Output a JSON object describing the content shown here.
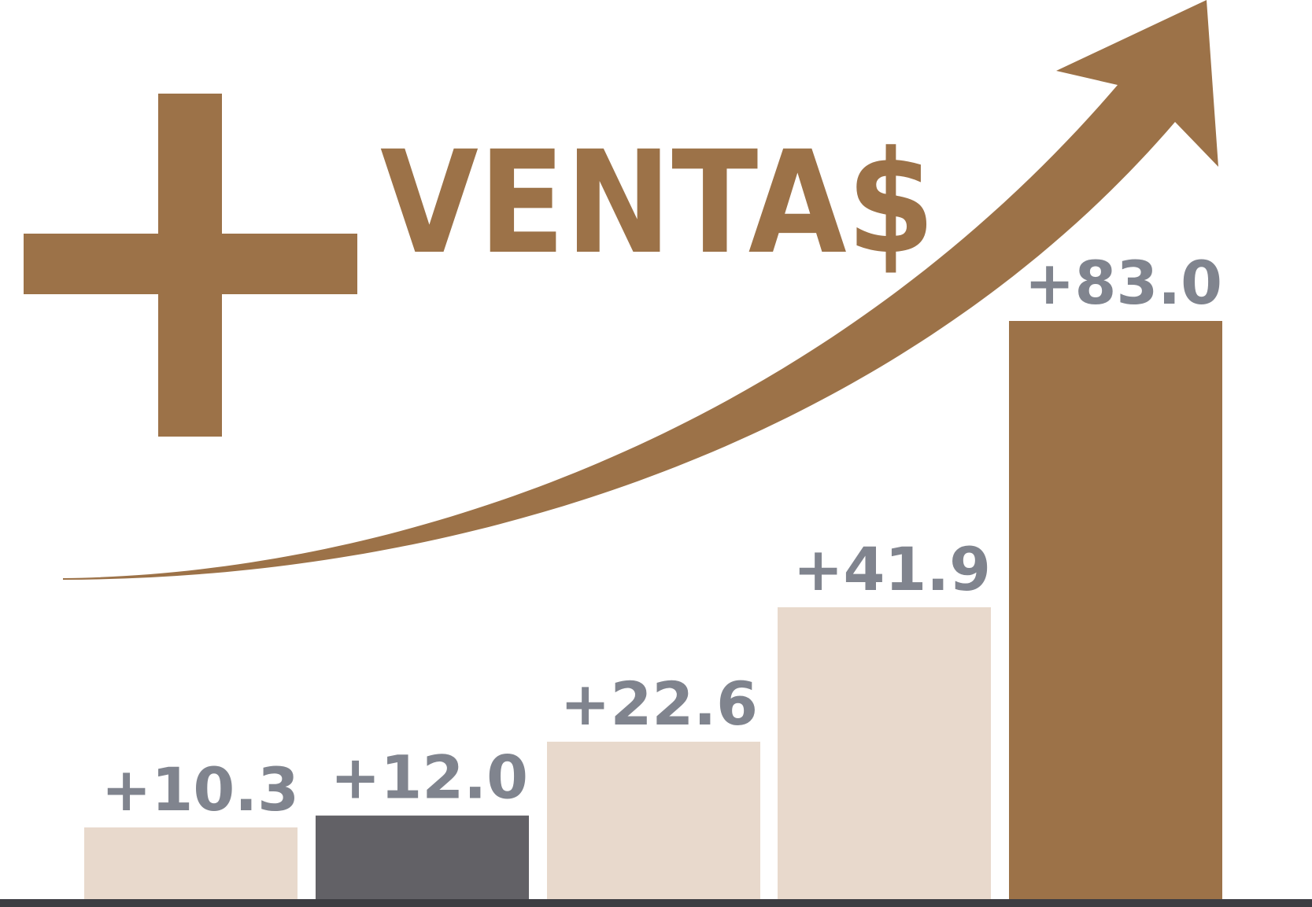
{
  "chart_data": {
    "type": "bar",
    "title": "VENTA$",
    "title_prefix_symbol": "plus",
    "decoration": "rising-arrow",
    "categories": [
      "",
      "",
      "",
      "",
      ""
    ],
    "values": [
      10.3,
      12.0,
      22.6,
      41.9,
      83.0
    ],
    "value_labels": [
      "+10.3",
      "+12.0",
      "+22.6",
      "+41.9",
      "+83.0"
    ],
    "bar_colors": [
      "#e8d9cc",
      "#626166",
      "#e8d9cc",
      "#e8d9cc",
      "#9c7248"
    ],
    "label_color": "#80848e",
    "accent_color": "#9c7248",
    "baseline_color": "#3d3d42",
    "grid": false,
    "legend": "none"
  }
}
